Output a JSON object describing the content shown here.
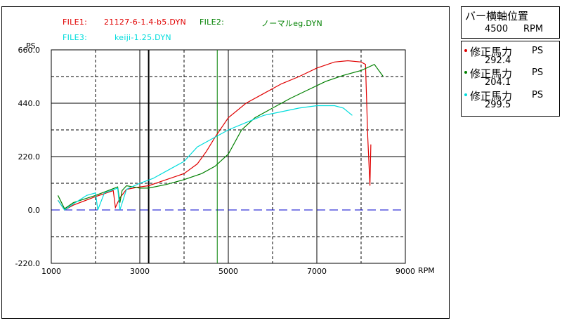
{
  "files": [
    {
      "label": "FILE1:",
      "name": "21127-6-1.4-b5.DYN",
      "color": "#e00000"
    },
    {
      "label": "FILE2:",
      "name": "ノーマルeg.DYN",
      "color": "#008000"
    },
    {
      "label": "FILE3:",
      "name": "keiji-1.25.DYN",
      "color": "#00dcdc"
    }
  ],
  "bar_panel": {
    "title": "バー横軸位置",
    "value": "4500",
    "unit": "RPM"
  },
  "legend": [
    {
      "name": "修正馬力",
      "unit": "PS",
      "value": "292.4",
      "color": "#e00000"
    },
    {
      "name": "修正馬力",
      "unit": "PS",
      "value": "204.1",
      "color": "#008000"
    },
    {
      "name": "修正馬力",
      "unit": "PS",
      "value": "299.5",
      "color": "#00dcdc"
    }
  ],
  "chart_data": {
    "type": "line",
    "xlabel": "RPM",
    "ylabel": "PS",
    "xlim": [
      1000,
      9000
    ],
    "ylim": [
      -220,
      660
    ],
    "x_ticks": [
      "1000",
      "3000",
      "5000",
      "7000",
      "9000"
    ],
    "x_tick_values": [
      1000,
      3000,
      5000,
      7000,
      9000
    ],
    "y_ticks": [
      "660.0",
      "440.0",
      "220.0",
      "0.0",
      "-220.0"
    ],
    "y_tick_values": [
      660,
      440,
      220,
      0,
      -220
    ],
    "cursor_rpm": 4500,
    "markers": [
      {
        "x": 3200,
        "color": "#000000"
      },
      {
        "x": 4750,
        "color": "#008000"
      }
    ],
    "zero_line_color": "#0000cc",
    "series": [
      {
        "name": "FILE1",
        "color": "#e00000",
        "x": [
          1150,
          1300,
          1500,
          2000,
          2400,
          2450,
          2550,
          2700,
          3000,
          3200,
          3600,
          4000,
          4300,
          4500,
          4700,
          5000,
          5400,
          5800,
          6200,
          6600,
          7000,
          7400,
          7700,
          8000,
          8100,
          8150,
          8200,
          8220
        ],
        "y": [
          40,
          0,
          20,
          55,
          80,
          10,
          50,
          85,
          95,
          100,
          125,
          150,
          190,
          240,
          300,
          380,
          440,
          480,
          520,
          550,
          585,
          610,
          615,
          610,
          600,
          300,
          100,
          270
        ]
      },
      {
        "name": "FILE2",
        "color": "#008000",
        "x": [
          1150,
          1300,
          1500,
          2000,
          2500,
          2550,
          2600,
          2700,
          3000,
          3200,
          3600,
          4000,
          4400,
          4700,
          5000,
          5300,
          5600,
          6000,
          6400,
          6800,
          7200,
          7600,
          8000,
          8300,
          8500
        ],
        "y": [
          60,
          5,
          30,
          60,
          95,
          30,
          80,
          100,
          90,
          90,
          105,
          125,
          150,
          180,
          230,
          330,
          380,
          420,
          460,
          495,
          530,
          555,
          575,
          600,
          550
        ]
      },
      {
        "name": "FILE3",
        "color": "#00dcdc",
        "x": [
          1150,
          1300,
          1500,
          1800,
          2000,
          2050,
          2200,
          2500,
          2550,
          2700,
          3000,
          3300,
          3600,
          4000,
          4300,
          4700,
          5000,
          5400,
          5800,
          6200,
          6600,
          7000,
          7400,
          7600,
          7800
        ],
        "y": [
          40,
          0,
          25,
          60,
          70,
          0,
          70,
          90,
          0,
          85,
          110,
          130,
          160,
          200,
          260,
          300,
          330,
          360,
          390,
          405,
          420,
          430,
          430,
          420,
          390
        ]
      }
    ]
  }
}
